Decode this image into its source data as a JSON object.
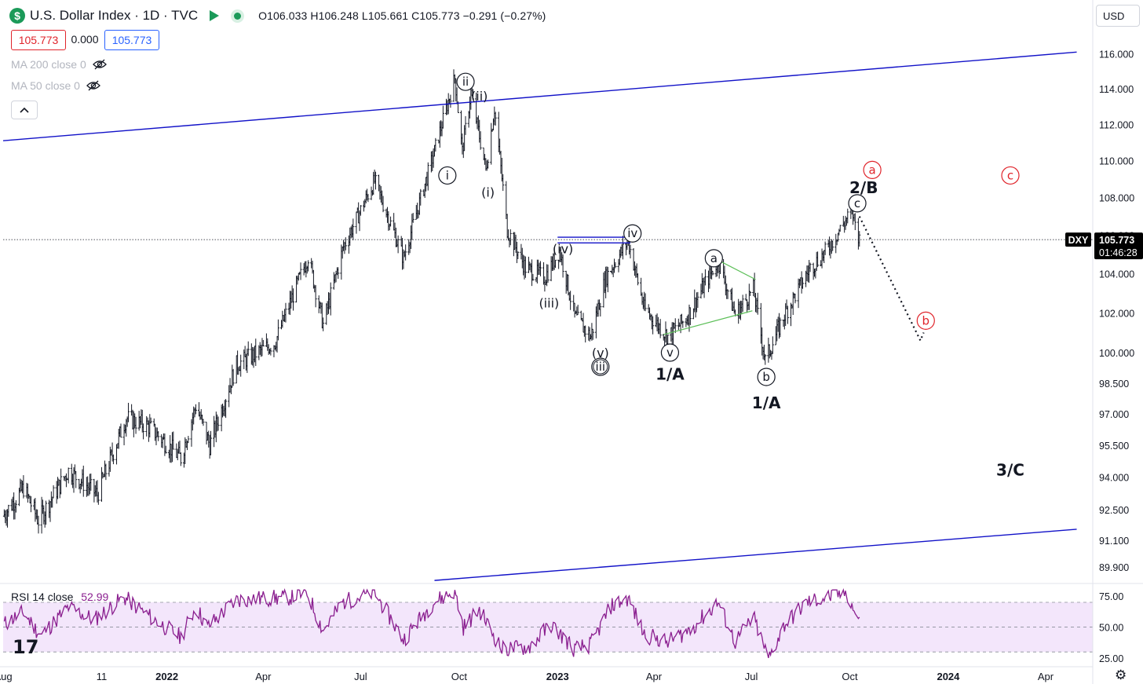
{
  "header": {
    "badge": "$",
    "title": "U.S. Dollar Index · 1D · TVC",
    "ohlc": "O106.033  H106.248  L105.661  C105.773  −0.291 (−0.27%)",
    "bid": "105.773",
    "spread": "0.000",
    "ask": "105.773",
    "currency_button": "USD"
  },
  "indicators": {
    "ma200": "MA 200 close 0",
    "ma50": "MA 50 close 0",
    "rsi_label": "RSI 14 close",
    "rsi_value": "52.99"
  },
  "price_tag": {
    "symbol": "DXY",
    "price": "105.773",
    "countdown": "01:46:28"
  },
  "colors": {
    "candle": "#131722",
    "channel": "#1212c8",
    "rsi_line": "#8a1e8f",
    "rsi_band": "#f3e6fb",
    "projection_red": "#e0242b",
    "green": "#1b9a59",
    "triangle": "#5cbf58"
  },
  "chart_data": [
    {
      "type": "bar",
      "title": "U.S. Dollar Index · 1D · TVC",
      "ylim": [
        89.2,
        117.3
      ],
      "y_scale": "log",
      "xlim": [
        "2021-08-01",
        "2024-05-15"
      ],
      "y_ticks": [
        "116.000",
        "114.000",
        "112.000",
        "110.000",
        "108.000",
        "106.000",
        "104.000",
        "102.000",
        "100.000",
        "98.500",
        "97.000",
        "95.500",
        "94.000",
        "92.500",
        "91.100",
        "89.900"
      ],
      "x_ticks": [
        {
          "label": "Aug",
          "date": "2021-08-01"
        },
        {
          "label": "11",
          "date": "2021-11-01"
        },
        {
          "label": "2022",
          "date": "2022-01-01"
        },
        {
          "label": "Apr",
          "date": "2022-04-01"
        },
        {
          "label": "Jul",
          "date": "2022-07-01"
        },
        {
          "label": "Oct",
          "date": "2022-10-01"
        },
        {
          "label": "2023",
          "date": "2023-01-01"
        },
        {
          "label": "Apr",
          "date": "2023-04-01"
        },
        {
          "label": "Jul",
          "date": "2023-07-01"
        },
        {
          "label": "Oct",
          "date": "2023-10-01"
        },
        {
          "label": "2024",
          "date": "2024-01-01"
        },
        {
          "label": "Apr",
          "date": "2024-04-01"
        }
      ],
      "path": [
        [
          "2021-08-01",
          92.2
        ],
        [
          "2021-08-20",
          93.5
        ],
        [
          "2021-09-03",
          92.0
        ],
        [
          "2021-10-01",
          94.3
        ],
        [
          "2021-10-28",
          93.2
        ],
        [
          "2021-11-24",
          96.8
        ],
        [
          "2021-12-15",
          96.4
        ],
        [
          "2022-01-14",
          94.9
        ],
        [
          "2022-01-28",
          97.4
        ],
        [
          "2022-02-10",
          95.5
        ],
        [
          "2022-03-07",
          99.4
        ],
        [
          "2022-04-12",
          100.5
        ],
        [
          "2022-05-13",
          104.9
        ],
        [
          "2022-05-27",
          101.4
        ],
        [
          "2022-06-15",
          105.4
        ],
        [
          "2022-07-14",
          108.9
        ],
        [
          "2022-08-10",
          104.8
        ],
        [
          "2022-09-06",
          110.1
        ],
        [
          "2022-09-27",
          114.6
        ],
        [
          "2022-10-04",
          110.5
        ],
        [
          "2022-10-12",
          113.8
        ],
        [
          "2022-10-26",
          109.5
        ],
        [
          "2022-11-03",
          112.9
        ],
        [
          "2022-11-15",
          106.3
        ],
        [
          "2022-12-02",
          104.3
        ],
        [
          "2022-12-20",
          103.8
        ],
        [
          "2023-01-03",
          105.2
        ],
        [
          "2023-01-17",
          101.8
        ],
        [
          "2023-02-01",
          100.8
        ],
        [
          "2023-02-15",
          103.8
        ],
        [
          "2023-03-08",
          105.7
        ],
        [
          "2023-03-23",
          102.2
        ],
        [
          "2023-04-14",
          100.8
        ],
        [
          "2023-05-01",
          101.7
        ],
        [
          "2023-05-31",
          104.7
        ],
        [
          "2023-06-16",
          101.9
        ],
        [
          "2023-07-03",
          103.2
        ],
        [
          "2023-07-14",
          99.6
        ],
        [
          "2023-08-01",
          101.9
        ],
        [
          "2023-08-25",
          104.3
        ],
        [
          "2023-09-08",
          105.1
        ],
        [
          "2023-10-03",
          107.3
        ],
        [
          "2023-10-10",
          105.8
        ]
      ],
      "last_close": 105.773,
      "trendlines": [
        {
          "name": "upper-channel",
          "color": "blue",
          "from": [
            "2021-08-01",
            111.1
          ],
          "to": [
            "2024-04-30",
            116.1
          ]
        },
        {
          "name": "lower-channel",
          "color": "blue",
          "from": [
            "2022-09-08",
            89.3
          ],
          "to": [
            "2024-04-30",
            91.6
          ]
        },
        {
          "name": "triangle-upper",
          "color": "green",
          "from": [
            "2023-05-31",
            104.7
          ],
          "to": [
            "2023-07-05",
            103.7
          ]
        },
        {
          "name": "triangle-lower",
          "color": "green",
          "from": [
            "2023-04-10",
            100.9
          ],
          "to": [
            "2023-07-02",
            102.1
          ]
        },
        {
          "name": "box-top",
          "color": "blue",
          "from": [
            "2023-01-01",
            105.9
          ],
          "to": [
            "2023-03-10",
            105.9
          ]
        },
        {
          "name": "box-bottom",
          "color": "blue",
          "from": [
            "2023-01-01",
            105.6
          ],
          "to": [
            "2023-03-10",
            105.6
          ]
        }
      ],
      "projection": [
        [
          "2023-10-10",
          107.0
        ],
        [
          "2023-12-06",
          100.6
        ],
        [
          "2023-12-09",
          101.0
        ]
      ],
      "annotations": [
        {
          "text": "ii",
          "date": "2022-10-07",
          "price": 114.4,
          "style": "circle"
        },
        {
          "text": "(ii)",
          "date": "2022-10-20",
          "price": 113.6,
          "style": "plain"
        },
        {
          "text": "i",
          "date": "2022-09-20",
          "price": 109.2,
          "style": "circle"
        },
        {
          "text": "(i)",
          "date": "2022-10-28",
          "price": 108.3,
          "style": "plain"
        },
        {
          "text": "(iv)",
          "date": "2023-01-06",
          "price": 105.3,
          "style": "plain"
        },
        {
          "text": "iv",
          "date": "2023-03-12",
          "price": 106.1,
          "style": "circle"
        },
        {
          "text": "(iii)",
          "date": "2022-12-24",
          "price": 102.5,
          "style": "plain"
        },
        {
          "text": "(v)",
          "date": "2023-02-10",
          "price": 100.0,
          "style": "plain"
        },
        {
          "text": "iii",
          "date": "2023-02-10",
          "price": 99.3,
          "style": "circle"
        },
        {
          "text": "v",
          "date": "2023-04-16",
          "price": 100.0,
          "style": "circle"
        },
        {
          "text": "1/A",
          "date": "2023-04-16",
          "price": 98.9,
          "style": "bold"
        },
        {
          "text": "a",
          "date": "2023-05-27",
          "price": 104.8,
          "style": "circle"
        },
        {
          "text": "b",
          "date": "2023-07-15",
          "price": 98.8,
          "style": "circle"
        },
        {
          "text": "1/A",
          "date": "2023-07-15",
          "price": 97.5,
          "style": "bold"
        },
        {
          "text": "c",
          "date": "2023-10-08",
          "price": 107.7,
          "style": "circle"
        },
        {
          "text": "2/B",
          "date": "2023-10-14",
          "price": 108.5,
          "style": "bold"
        },
        {
          "text": "a",
          "date": "2023-10-22",
          "price": 109.5,
          "style": "circle-red"
        },
        {
          "text": "c",
          "date": "2024-02-28",
          "price": 109.2,
          "style": "circle-red"
        },
        {
          "text": "b",
          "date": "2023-12-11",
          "price": 101.6,
          "style": "circle-red"
        },
        {
          "text": "3/C",
          "date": "2024-02-28",
          "price": 94.3,
          "style": "bold"
        }
      ]
    },
    {
      "type": "line",
      "title": "RSI 14 close",
      "ylim": [
        20,
        82
      ],
      "y_ticks": [
        75.0,
        50.0,
        25.0
      ],
      "band": [
        30,
        70
      ],
      "last": 52.99,
      "points": [
        [
          "2021-08-01",
          52
        ],
        [
          "2021-08-20",
          62
        ],
        [
          "2021-09-05",
          43
        ],
        [
          "2021-10-01",
          66
        ],
        [
          "2021-10-25",
          56
        ],
        [
          "2021-11-22",
          74
        ],
        [
          "2021-12-20",
          56
        ],
        [
          "2022-01-14",
          42
        ],
        [
          "2022-01-28",
          66
        ],
        [
          "2022-02-08",
          50
        ],
        [
          "2022-03-07",
          72
        ],
        [
          "2022-04-25",
          74
        ],
        [
          "2022-05-12",
          78
        ],
        [
          "2022-05-27",
          47
        ],
        [
          "2022-06-14",
          70
        ],
        [
          "2022-07-14",
          78
        ],
        [
          "2022-08-10",
          40
        ],
        [
          "2022-09-07",
          70
        ],
        [
          "2022-09-27",
          79
        ],
        [
          "2022-10-05",
          50
        ],
        [
          "2022-10-20",
          64
        ],
        [
          "2022-11-10",
          32
        ],
        [
          "2022-12-05",
          34
        ],
        [
          "2022-12-26",
          52
        ],
        [
          "2023-01-17",
          32
        ],
        [
          "2023-02-01",
          36
        ],
        [
          "2023-02-20",
          67
        ],
        [
          "2023-03-08",
          73
        ],
        [
          "2023-03-23",
          44
        ],
        [
          "2023-04-14",
          38
        ],
        [
          "2023-05-05",
          48
        ],
        [
          "2023-05-31",
          70
        ],
        [
          "2023-06-16",
          38
        ],
        [
          "2023-07-03",
          58
        ],
        [
          "2023-07-17",
          24
        ],
        [
          "2023-08-01",
          52
        ],
        [
          "2023-08-22",
          70
        ],
        [
          "2023-09-10",
          74
        ],
        [
          "2023-09-28",
          78
        ],
        [
          "2023-10-10",
          53
        ]
      ]
    }
  ]
}
